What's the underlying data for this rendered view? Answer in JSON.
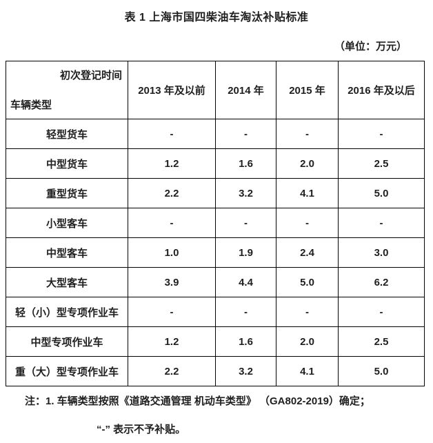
{
  "page": {
    "title": "表 1 上海市国四柴油车淘汰补贴标准",
    "unit_label": "（单位：万元）"
  },
  "table": {
    "corner": {
      "top_right": "初次登记时间",
      "bottom_left": "车辆类型"
    },
    "columns": [
      "2013 年及以前",
      "2014 年",
      "2015 年",
      "2016 年及以后"
    ],
    "rows": [
      {
        "label": "轻型货车",
        "values": [
          "-",
          "-",
          "-",
          "-"
        ]
      },
      {
        "label": "中型货车",
        "values": [
          "1.2",
          "1.6",
          "2.0",
          "2.5"
        ]
      },
      {
        "label": "重型货车",
        "values": [
          "2.2",
          "3.2",
          "4.1",
          "5.0"
        ]
      },
      {
        "label": "小型客车",
        "values": [
          "-",
          "-",
          "-",
          "-"
        ]
      },
      {
        "label": "中型客车",
        "values": [
          "1.0",
          "1.9",
          "2.4",
          "3.0"
        ]
      },
      {
        "label": "大型客车",
        "values": [
          "3.9",
          "4.4",
          "5.0",
          "6.2"
        ]
      },
      {
        "label": "轻（小）型专项作业车",
        "values": [
          "-",
          "-",
          "-",
          "-"
        ]
      },
      {
        "label": "中型专项作业车",
        "values": [
          "1.2",
          "1.6",
          "2.0",
          "2.5"
        ]
      },
      {
        "label": "重（大）型专项作业车",
        "values": [
          "2.2",
          "3.2",
          "4.1",
          "5.0"
        ]
      }
    ]
  },
  "notes": {
    "line1": "注：1. 车辆类型按照《道路交通管理 机动车类型》 （GA802-2019）确定；",
    "line2": "“-” 表示不予补贴。"
  }
}
